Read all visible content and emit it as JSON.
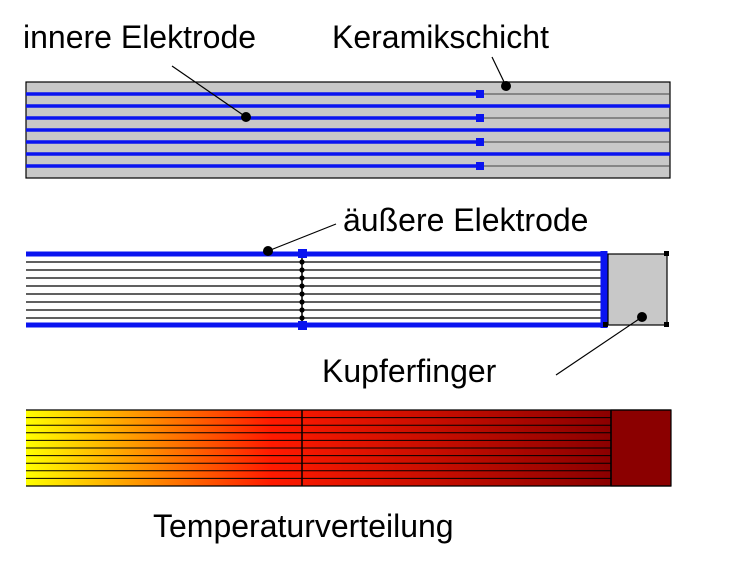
{
  "labels": {
    "inner_electrode": "innere Elektrode",
    "ceramic_layer": "Keramikschicht",
    "outer_electrode": "äußere Elektrode",
    "copper_finger": "Kupferfinger",
    "temperature_distribution": "Temperaturverteilung"
  },
  "colors": {
    "electrode": "#0a14f0",
    "ceramic": "#c8c8c8",
    "copper": "#c8c8c8",
    "line": "#000000",
    "heat_cold": "#ffff00",
    "heat_mid": "#ff1a00",
    "heat_hot": "#8b0000"
  }
}
